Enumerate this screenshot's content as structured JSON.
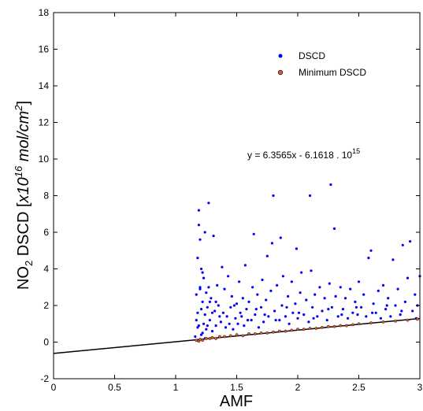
{
  "chart_data": {
    "type": "scatter",
    "xlabel": "AMF",
    "ylabel": {
      "part1": "NO",
      "sub": "2",
      "part2": " DSCD [",
      "part3": "x10",
      "sup1": "16",
      "part4": " mol/cm",
      "sup2": "2",
      "part5": "]"
    },
    "xlim": [
      0,
      3
    ],
    "ylim": [
      -2,
      18
    ],
    "xticks": [
      "0",
      "0.5",
      "1",
      "1.5",
      "2",
      "2.5",
      "3"
    ],
    "yticks": [
      "-2",
      "0",
      "2",
      "4",
      "6",
      "8",
      "10",
      "12",
      "14",
      "16",
      "18"
    ],
    "grid": false,
    "legend_position": "top-right",
    "legend": [
      {
        "label": "DSCD",
        "color": "#0000ff"
      },
      {
        "label": "Minimum DSCD",
        "color": "#e05a2b"
      }
    ],
    "equation": {
      "text": "y = 6.3565x - 6.1618 . 10",
      "sup": "15"
    },
    "fit_line": {
      "slope": 0.63565,
      "intercept": -0.61618,
      "x_range": [
        0,
        3
      ]
    },
    "series": [
      {
        "name": "DSCD",
        "color": "#0000ff",
        "points": [
          [
            1.16,
            0.3
          ],
          [
            1.17,
            1.2
          ],
          [
            1.17,
            2.6
          ],
          [
            1.18,
            0.8
          ],
          [
            1.18,
            4.6
          ],
          [
            1.19,
            7.2
          ],
          [
            1.19,
            6.4
          ],
          [
            1.2,
            5.6
          ],
          [
            1.2,
            3.0
          ],
          [
            1.21,
            1.8
          ],
          [
            1.21,
            4.0
          ],
          [
            1.22,
            0.5
          ],
          [
            1.22,
            2.2
          ],
          [
            1.23,
            1.0
          ],
          [
            1.23,
            3.5
          ],
          [
            1.24,
            6.0
          ],
          [
            1.24,
            1.5
          ],
          [
            1.25,
            2.7
          ],
          [
            1.25,
            0.7
          ],
          [
            1.26,
            1.9
          ],
          [
            1.27,
            7.6
          ],
          [
            1.27,
            3.0
          ],
          [
            1.28,
            1.2
          ],
          [
            1.29,
            2.4
          ],
          [
            1.3,
            0.6
          ],
          [
            1.31,
            5.8
          ],
          [
            1.32,
            1.7
          ],
          [
            1.33,
            0.9
          ],
          [
            1.34,
            3.1
          ],
          [
            1.35,
            2.0
          ],
          [
            1.37,
            1.1
          ],
          [
            1.38,
            4.1
          ],
          [
            1.39,
            1.6
          ],
          [
            1.4,
            2.9
          ],
          [
            1.41,
            0.8
          ],
          [
            1.42,
            1.4
          ],
          [
            1.43,
            3.6
          ],
          [
            1.45,
            1.9
          ],
          [
            1.46,
            2.5
          ],
          [
            1.47,
            0.7
          ],
          [
            1.49,
            1.3
          ],
          [
            1.5,
            2.1
          ],
          [
            1.51,
            1.0
          ],
          [
            1.52,
            3.3
          ],
          [
            1.53,
            1.6
          ],
          [
            1.55,
            2.4
          ],
          [
            1.56,
            0.9
          ],
          [
            1.57,
            4.2
          ],
          [
            1.58,
            1.8
          ],
          [
            1.6,
            2.2
          ],
          [
            1.62,
            1.2
          ],
          [
            1.63,
            3.0
          ],
          [
            1.64,
            5.9
          ],
          [
            1.65,
            1.5
          ],
          [
            1.67,
            2.6
          ],
          [
            1.68,
            0.8
          ],
          [
            1.7,
            1.9
          ],
          [
            1.71,
            3.4
          ],
          [
            1.72,
            1.1
          ],
          [
            1.74,
            2.3
          ],
          [
            1.75,
            4.7
          ],
          [
            1.76,
            1.4
          ],
          [
            1.78,
            2.8
          ],
          [
            1.79,
            5.4
          ],
          [
            1.8,
            8.0
          ],
          [
            1.81,
            1.7
          ],
          [
            1.83,
            3.1
          ],
          [
            1.85,
            1.2
          ],
          [
            1.86,
            5.7
          ],
          [
            1.87,
            2.0
          ],
          [
            1.88,
            3.6
          ],
          [
            1.9,
            1.4
          ],
          [
            1.92,
            2.5
          ],
          [
            1.93,
            1.0
          ],
          [
            1.95,
            3.3
          ],
          [
            1.96,
            1.6
          ],
          [
            1.98,
            2.1
          ],
          [
            1.99,
            5.1
          ],
          [
            2.0,
            1.3
          ],
          [
            2.02,
            2.7
          ],
          [
            2.03,
            3.8
          ],
          [
            2.05,
            1.5
          ],
          [
            2.07,
            2.3
          ],
          [
            2.09,
            1.1
          ],
          [
            2.1,
            8.0
          ],
          [
            2.11,
            3.9
          ],
          [
            2.12,
            1.9
          ],
          [
            2.14,
            2.6
          ],
          [
            2.16,
            1.4
          ],
          [
            2.18,
            3.0
          ],
          [
            2.2,
            1.7
          ],
          [
            2.22,
            2.4
          ],
          [
            2.24,
            1.2
          ],
          [
            2.26,
            3.2
          ],
          [
            2.27,
            8.6
          ],
          [
            2.28,
            1.9
          ],
          [
            2.3,
            6.2
          ],
          [
            2.31,
            2.5
          ],
          [
            2.33,
            1.4
          ],
          [
            2.35,
            3.0
          ],
          [
            2.37,
            1.8
          ],
          [
            2.39,
            2.4
          ],
          [
            2.41,
            1.3
          ],
          [
            2.43,
            2.9
          ],
          [
            2.45,
            1.6
          ],
          [
            2.47,
            2.2
          ],
          [
            2.49,
            1.5
          ],
          [
            2.5,
            3.3
          ],
          [
            2.52,
            1.9
          ],
          [
            2.54,
            2.6
          ],
          [
            2.56,
            1.4
          ],
          [
            2.58,
            4.6
          ],
          [
            2.6,
            5.0
          ],
          [
            2.62,
            2.1
          ],
          [
            2.64,
            1.6
          ],
          [
            2.66,
            2.8
          ],
          [
            2.68,
            1.3
          ],
          [
            2.7,
            3.1
          ],
          [
            2.72,
            1.8
          ],
          [
            2.74,
            2.4
          ],
          [
            2.76,
            1.4
          ],
          [
            2.78,
            4.5
          ],
          [
            2.8,
            2.0
          ],
          [
            2.82,
            2.9
          ],
          [
            2.84,
            1.5
          ],
          [
            2.86,
            5.3
          ],
          [
            2.88,
            2.2
          ],
          [
            2.9,
            3.5
          ],
          [
            2.92,
            5.5
          ],
          [
            2.94,
            1.7
          ],
          [
            2.96,
            2.6
          ],
          [
            2.98,
            2.0
          ],
          [
            3.0,
            3.6
          ],
          [
            1.18,
            1.6
          ],
          [
            1.19,
            0.9
          ],
          [
            1.2,
            2.9
          ],
          [
            1.21,
            0.4
          ],
          [
            1.22,
            3.8
          ],
          [
            1.24,
            0.2
          ],
          [
            1.26,
            0.9
          ],
          [
            1.28,
            2.2
          ],
          [
            1.3,
            1.6
          ],
          [
            1.33,
            2.2
          ],
          [
            1.36,
            1.4
          ],
          [
            1.44,
            1.0
          ],
          [
            1.48,
            2.0
          ],
          [
            1.54,
            1.4
          ],
          [
            1.59,
            1.2
          ],
          [
            1.66,
            1.8
          ],
          [
            1.73,
            1.5
          ],
          [
            1.82,
            1.2
          ],
          [
            1.91,
            1.9
          ],
          [
            2.01,
            1.6
          ],
          [
            2.13,
            1.3
          ],
          [
            2.25,
            1.8
          ],
          [
            2.36,
            1.5
          ],
          [
            2.48,
            1.9
          ],
          [
            2.61,
            1.6
          ],
          [
            2.73,
            2.0
          ],
          [
            2.85,
            1.7
          ],
          [
            2.97,
            1.3
          ]
        ]
      },
      {
        "name": "Minimum DSCD",
        "color": "#e05a2b",
        "points": [
          [
            1.17,
            0.1
          ],
          [
            1.19,
            0.05
          ],
          [
            1.2,
            0.15
          ],
          [
            1.22,
            0.1
          ],
          [
            1.25,
            0.2
          ],
          [
            1.28,
            0.2
          ],
          [
            1.3,
            0.25
          ],
          [
            1.33,
            0.2
          ],
          [
            1.36,
            0.3
          ],
          [
            1.4,
            0.3
          ],
          [
            1.45,
            0.35
          ],
          [
            1.5,
            0.4
          ],
          [
            1.55,
            0.35
          ],
          [
            1.6,
            0.45
          ],
          [
            1.65,
            0.45
          ],
          [
            1.7,
            0.5
          ],
          [
            1.75,
            0.5
          ],
          [
            1.8,
            0.55
          ],
          [
            1.85,
            0.6
          ],
          [
            1.9,
            0.6
          ],
          [
            1.95,
            0.65
          ],
          [
            2.0,
            0.7
          ],
          [
            2.05,
            0.7
          ],
          [
            2.1,
            0.75
          ],
          [
            2.15,
            0.75
          ],
          [
            2.2,
            0.8
          ],
          [
            2.25,
            0.85
          ],
          [
            2.3,
            0.85
          ],
          [
            2.35,
            0.9
          ],
          [
            2.4,
            0.9
          ],
          [
            2.45,
            0.95
          ],
          [
            2.5,
            1.0
          ],
          [
            2.6,
            1.05
          ],
          [
            2.7,
            1.1
          ],
          [
            2.8,
            1.15
          ],
          [
            2.9,
            1.2
          ],
          [
            2.98,
            1.25
          ]
        ]
      }
    ]
  }
}
